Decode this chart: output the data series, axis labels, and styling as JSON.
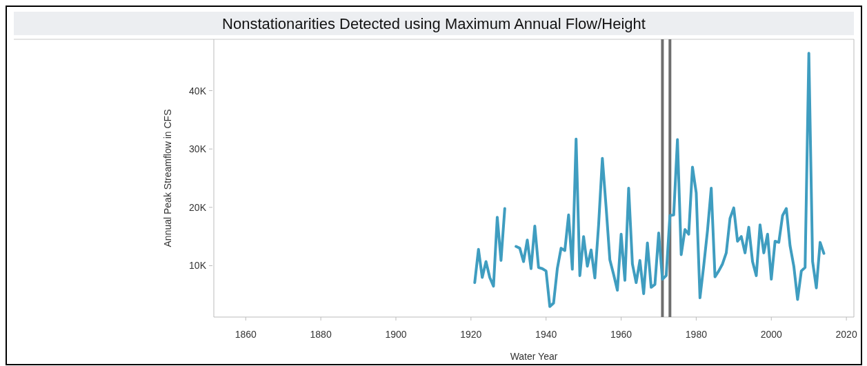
{
  "chart_data": {
    "type": "line",
    "title": "Nonstationarities Detected using Maximum Annual Flow/Height",
    "xlabel": "Water Year",
    "ylabel": "Annual Peak Streamflow in CFS",
    "x": [
      1921,
      1922,
      1923,
      1924,
      1925,
      1926,
      1927,
      1928,
      1929,
      1930,
      1931,
      1932,
      1933,
      1934,
      1935,
      1936,
      1937,
      1938,
      1939,
      1940,
      1941,
      1942,
      1943,
      1944,
      1945,
      1946,
      1947,
      1948,
      1949,
      1950,
      1951,
      1952,
      1953,
      1954,
      1955,
      1956,
      1957,
      1958,
      1959,
      1960,
      1961,
      1962,
      1963,
      1964,
      1965,
      1966,
      1967,
      1968,
      1969,
      1970,
      1971,
      1972,
      1973,
      1974,
      1975,
      1976,
      1977,
      1978,
      1979,
      1980,
      1981,
      1982,
      1983,
      1984,
      1985,
      1986,
      1987,
      1988,
      1989,
      1990,
      1991,
      1992,
      1993,
      1994,
      1995,
      1996,
      1997,
      1998,
      1999,
      2000,
      2001,
      2002,
      2003,
      2004,
      2005,
      2006,
      2007,
      2008,
      2009,
      2010,
      2011,
      2012,
      2013,
      2014
    ],
    "series": [
      {
        "color": "#3f9dc0",
        "values": [
          7100,
          12800,
          8000,
          10700,
          8000,
          6500,
          18300,
          10900,
          19800,
          null,
          null,
          13300,
          13000,
          10700,
          14400,
          9500,
          16800,
          9700,
          9500,
          9100,
          3000,
          3600,
          9500,
          13000,
          12600,
          18700,
          9400,
          31700,
          8300,
          15000,
          9900,
          12700,
          7900,
          17000,
          28400,
          20000,
          11000,
          8500,
          5800,
          15400,
          7500,
          23300,
          10300,
          7100,
          10900,
          5200,
          13900,
          6300,
          6800,
          15600,
          7700,
          8300,
          18600,
          18700,
          31600,
          11900,
          16200,
          15400,
          26900,
          22500,
          4500,
          10000,
          16000,
          23300,
          8100,
          9100,
          10300,
          12200,
          18100,
          19900,
          14200,
          15000,
          12200,
          16600,
          10700,
          8300,
          17000,
          12200,
          15400,
          7700,
          14200,
          14000,
          18600,
          19800,
          13400,
          9900,
          4200,
          9100,
          9700,
          46400,
          10700,
          6200,
          14000,
          12100
        ]
      }
    ],
    "xlim": [
      1851.5,
      2022
    ],
    "xticks": [
      1860,
      1880,
      1900,
      1920,
      1940,
      1960,
      1980,
      2000,
      2020
    ],
    "ylim": [
      1200,
      48800
    ],
    "yticks": [
      {
        "value": 10000,
        "label": "10K"
      },
      {
        "value": 20000,
        "label": "20K"
      },
      {
        "value": 30000,
        "label": "30K"
      },
      {
        "value": 40000,
        "label": "40K"
      }
    ],
    "ref_lines": [
      {
        "axis": "x",
        "value": 1971,
        "color": "#6e6e6e"
      },
      {
        "axis": "x",
        "value": 1973,
        "color": "#6e6e6e"
      }
    ],
    "grid": false
  }
}
